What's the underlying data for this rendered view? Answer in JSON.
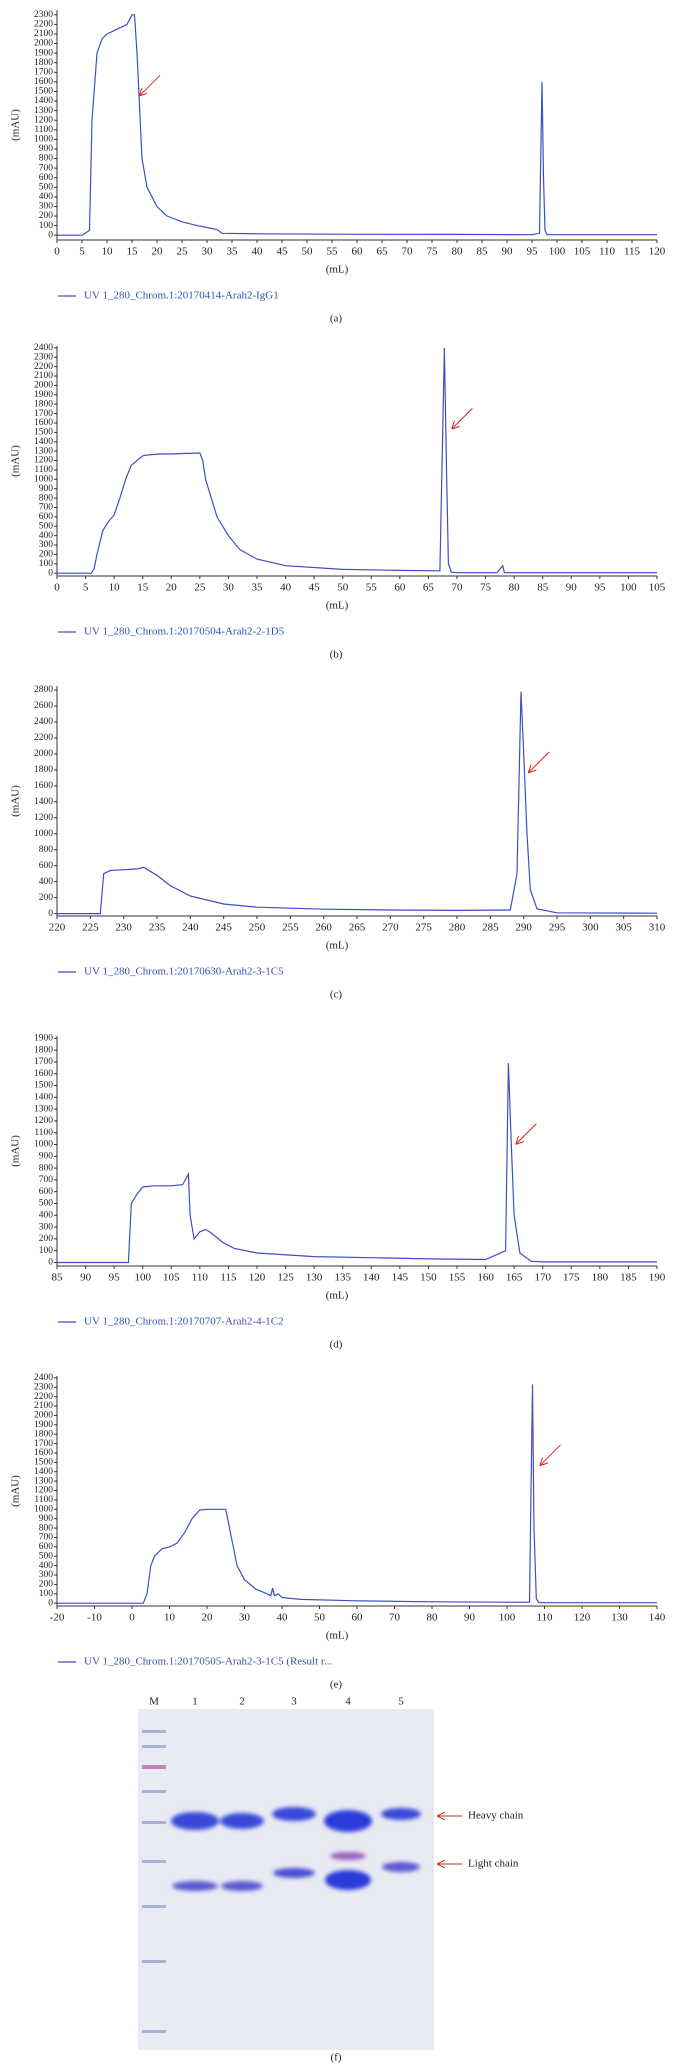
{
  "chart_data": [
    {
      "type": "line",
      "ylabel": "(mAU)",
      "xlabel": "(mL)",
      "caption": "(a)",
      "xlim": [
        0,
        120
      ],
      "ylim": [
        -50,
        2350
      ],
      "xticks": [
        0,
        5,
        10,
        15,
        20,
        25,
        30,
        35,
        40,
        45,
        50,
        55,
        60,
        65,
        70,
        75,
        80,
        85,
        90,
        95,
        100,
        105,
        110,
        115,
        120
      ],
      "yticks": [
        0,
        100,
        200,
        300,
        400,
        500,
        600,
        700,
        800,
        900,
        1000,
        1100,
        1200,
        1300,
        1400,
        1500,
        1600,
        1700,
        1800,
        1900,
        2000,
        2100,
        2200,
        2300
      ],
      "series": [
        {
          "name": "UV 1_280_Chrom.1:20170414-Arah2-IgG1",
          "color": "#3d4fc4",
          "x": [
            0,
            5,
            6.5,
            7,
            8,
            9,
            10,
            12,
            14,
            15,
            15.5,
            16,
            17,
            18,
            20,
            22,
            25,
            28,
            30,
            32,
            33,
            40,
            60,
            80,
            95,
            96.5,
            97,
            97.3,
            97.6,
            98,
            100,
            120
          ],
          "values": [
            0,
            0,
            50,
            1200,
            1900,
            2050,
            2100,
            2150,
            2200,
            2300,
            2300,
            1900,
            800,
            500,
            300,
            200,
            140,
            100,
            80,
            60,
            20,
            15,
            10,
            8,
            5,
            20,
            1600,
            600,
            50,
            5,
            5,
            5
          ]
        }
      ]
    },
    {
      "type": "line",
      "ylabel": "(mAU)",
      "xlabel": "(mL)",
      "caption": "(b)",
      "xlim": [
        0,
        105
      ],
      "ylim": [
        -30,
        2420
      ],
      "xticks": [
        0,
        5,
        10,
        15,
        20,
        25,
        30,
        35,
        40,
        45,
        50,
        55,
        60,
        65,
        70,
        75,
        80,
        85,
        90,
        95,
        100,
        105
      ],
      "yticks": [
        0,
        100,
        200,
        300,
        400,
        500,
        600,
        700,
        800,
        900,
        1000,
        1100,
        1200,
        1300,
        1400,
        1500,
        1600,
        1700,
        1800,
        1900,
        2000,
        2100,
        2200,
        2300,
        2400
      ],
      "series": [
        {
          "name": "UV 1_280_Chrom.1:20170504-Arah2-2-1D5",
          "color": "#3d4fc4",
          "x": [
            0,
            6,
            6.5,
            7,
            8,
            9,
            10,
            11,
            12,
            13,
            14,
            15,
            16,
            18,
            20,
            22,
            25,
            25.5,
            26,
            27,
            28,
            30,
            32,
            35,
            40,
            50,
            60,
            67,
            67.8,
            68.2,
            68.5,
            69,
            70,
            77,
            78,
            78.3,
            80,
            105
          ],
          "values": [
            0,
            0,
            50,
            200,
            450,
            550,
            620,
            800,
            1000,
            1150,
            1200,
            1250,
            1260,
            1270,
            1270,
            1275,
            1280,
            1200,
            1000,
            800,
            600,
            400,
            250,
            150,
            80,
            40,
            30,
            25,
            2400,
            1000,
            100,
            10,
            5,
            5,
            80,
            5,
            5,
            5
          ]
        }
      ]
    },
    {
      "type": "line",
      "ylabel": "(mAU)",
      "xlabel": "(mL)",
      "caption": "(c)",
      "xlim": [
        220,
        310
      ],
      "ylim": [
        -30,
        2850
      ],
      "xticks": [
        220,
        225,
        230,
        235,
        240,
        245,
        250,
        255,
        260,
        265,
        270,
        275,
        280,
        285,
        290,
        295,
        300,
        305,
        310
      ],
      "yticks": [
        0,
        200,
        400,
        600,
        800,
        1000,
        1200,
        1400,
        1600,
        1800,
        2000,
        2200,
        2400,
        2600,
        2800
      ],
      "series": [
        {
          "name": "UV 1_280_Chrom.1:20170630-Arah2-3-1C5",
          "color": "#3d4fc4",
          "x": [
            220,
            226.5,
            227,
            228,
            230,
            232,
            233,
            235,
            237,
            240,
            245,
            250,
            260,
            270,
            280,
            288,
            289,
            289.6,
            290,
            290.5,
            291,
            292,
            295,
            310
          ],
          "values": [
            0,
            0,
            500,
            540,
            550,
            560,
            580,
            480,
            350,
            220,
            120,
            80,
            55,
            45,
            40,
            45,
            500,
            2780,
            2000,
            1000,
            300,
            60,
            10,
            5
          ]
        }
      ]
    },
    {
      "type": "line",
      "ylabel": "(mAU)",
      "xlabel": "(mL)",
      "caption": "(d)",
      "xlim": [
        85,
        190
      ],
      "ylim": [
        -30,
        1920
      ],
      "xticks": [
        85,
        90,
        95,
        100,
        105,
        110,
        115,
        120,
        125,
        130,
        135,
        140,
        145,
        150,
        155,
        160,
        165,
        170,
        175,
        180,
        185,
        190
      ],
      "yticks": [
        0,
        100,
        200,
        300,
        400,
        500,
        600,
        700,
        800,
        900,
        1000,
        1100,
        1200,
        1300,
        1400,
        1500,
        1600,
        1700,
        1800,
        1900
      ],
      "series": [
        {
          "name": "UV 1_280_Chrom.1:20170707-Arah2-4-1C2",
          "color": "#3d4fc4",
          "x": [
            85,
            97.5,
            98,
            99,
            100,
            102,
            105,
            107,
            108,
            108.3,
            109,
            110,
            111,
            112,
            114,
            116,
            120,
            130,
            140,
            150,
            160,
            163.5,
            164,
            164.5,
            165,
            166,
            168,
            170,
            190
          ],
          "values": [
            0,
            0,
            500,
            580,
            640,
            650,
            650,
            660,
            750,
            400,
            200,
            260,
            280,
            250,
            170,
            120,
            80,
            50,
            40,
            30,
            25,
            100,
            1690,
            1000,
            400,
            80,
            10,
            5,
            5
          ]
        }
      ]
    },
    {
      "type": "line",
      "ylabel": "(mAU)",
      "xlabel": "(mL)",
      "caption": "(e)",
      "xlim": [
        -20,
        140
      ],
      "ylim": [
        -30,
        2420
      ],
      "xticks": [
        -20,
        -10,
        0,
        10,
        20,
        30,
        40,
        50,
        60,
        70,
        80,
        90,
        100,
        110,
        120,
        130,
        140
      ],
      "yticks": [
        0,
        100,
        200,
        300,
        400,
        500,
        600,
        700,
        800,
        900,
        1000,
        1100,
        1200,
        1300,
        1400,
        1500,
        1600,
        1700,
        1800,
        1900,
        2000,
        2100,
        2200,
        2300,
        2400
      ],
      "series": [
        {
          "name": "UV 1_280_Chrom.1:20170505-Arah2-3-1C5 (Result r...",
          "color": "#3d4fc4",
          "x": [
            -20,
            3,
            4,
            5,
            6,
            8,
            10,
            12,
            14,
            16,
            18,
            20,
            22,
            24,
            25,
            26,
            27,
            28,
            30,
            33,
            36,
            37,
            37.5,
            38,
            39,
            40,
            45,
            60,
            80,
            100,
            106,
            106.8,
            107.2,
            107.8,
            108.5,
            110,
            140
          ],
          "values": [
            0,
            0,
            100,
            400,
            500,
            580,
            600,
            640,
            750,
            900,
            990,
            1000,
            1000,
            1000,
            1000,
            800,
            600,
            400,
            250,
            150,
            100,
            80,
            160,
            80,
            100,
            60,
            40,
            25,
            15,
            10,
            10,
            2330,
            800,
            50,
            5,
            5,
            5
          ]
        }
      ]
    }
  ],
  "gel": {
    "lanes": [
      "M",
      "1",
      "2",
      "3",
      "4",
      "5"
    ],
    "labels": [
      "Heavy chain",
      "Light chain"
    ],
    "caption": "(f)"
  }
}
